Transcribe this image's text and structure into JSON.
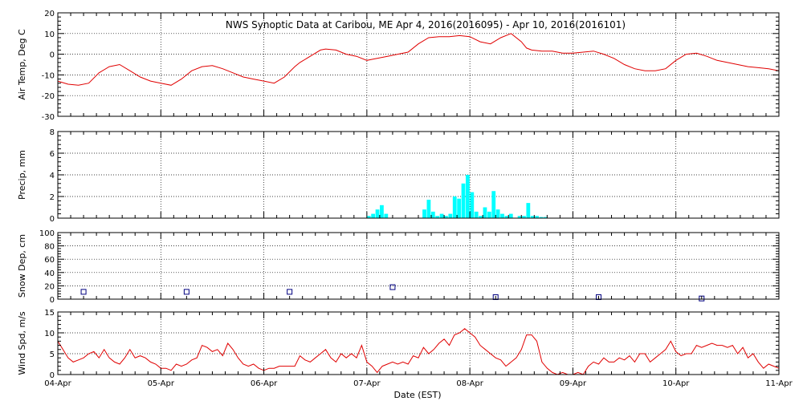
{
  "chart_data": {
    "title": "NWS Synoptic Data at Caribou, ME   Apr  4, 2016(2016095) - Apr 10, 2016(2016101)",
    "xlabel": "Date (EST)",
    "x_tick_labels": [
      "04-Apr",
      "05-Apr",
      "06-Apr",
      "07-Apr",
      "08-Apr",
      "09-Apr",
      "10-Apr",
      "11-Apr"
    ],
    "x_range_days": [
      0,
      7
    ],
    "line_color": "#e00000",
    "bar_color": "#00ffff",
    "marker_color": "#000080",
    "panels": [
      {
        "type": "line",
        "ylabel": "Air Temp, Deg C",
        "ylim": [
          -30,
          20
        ],
        "yticks": [
          -30,
          -20,
          -10,
          0,
          10,
          20
        ],
        "grid": true,
        "series": [
          {
            "x": [
              0,
              0.1,
              0.2,
              0.3,
              0.4,
              0.5,
              0.6,
              0.7,
              0.8,
              0.9,
              1.0,
              1.1,
              1.2,
              1.3,
              1.4,
              1.5,
              1.6,
              1.7,
              1.8,
              1.9,
              2.0,
              2.1,
              2.2,
              2.3,
              2.35,
              2.45,
              2.55,
              2.6,
              2.7,
              2.8,
              2.9,
              3.0,
              3.05,
              3.1,
              3.2,
              3.3,
              3.4,
              3.5,
              3.6,
              3.7,
              3.8,
              3.9,
              4.0,
              4.1,
              4.2,
              4.3,
              4.4,
              4.5,
              4.55,
              4.6,
              4.7,
              4.8,
              4.9,
              5.0,
              5.1,
              5.2,
              5.3,
              5.4,
              5.5,
              5.6,
              5.7,
              5.8,
              5.9,
              6.0,
              6.1,
              6.2,
              6.3,
              6.4,
              6.5,
              6.6,
              6.7,
              6.8,
              6.9,
              7.0
            ],
            "y": [
              -13,
              -14.5,
              -15,
              -14,
              -9,
              -6,
              -5,
              -8,
              -11,
              -13,
              -14,
              -15,
              -12,
              -8,
              -6,
              -5.5,
              -7,
              -9,
              -11,
              -12,
              -13,
              -14,
              -11,
              -6,
              -4,
              -1,
              2,
              2.5,
              2,
              0,
              -1,
              -3,
              -2.5,
              -2,
              -1,
              0,
              1,
              5,
              8,
              8.5,
              8.5,
              9,
              8.5,
              6,
              5,
              8,
              10,
              6,
              3,
              2,
              1.5,
              1.5,
              0.5,
              0.5,
              1,
              1.5,
              0,
              -2,
              -5,
              -7,
              -8,
              -8,
              -7,
              -3,
              0,
              0.5,
              -1,
              -3,
              -4,
              -5,
              -6,
              -6.5,
              -7,
              -8
            ]
          }
        ]
      },
      {
        "type": "bar",
        "ylabel": "Precip, mm",
        "ylim": [
          0,
          8
        ],
        "yticks": [
          0,
          2,
          4,
          6,
          8
        ],
        "grid": true,
        "bar_width_days": 0.042,
        "x": [
          3.0,
          3.042,
          3.084,
          3.126,
          3.168,
          3.21,
          3.54,
          3.582,
          3.624,
          3.666,
          3.708,
          3.75,
          3.792,
          3.834,
          3.876,
          3.918,
          3.96,
          4.002,
          4.044,
          4.086,
          4.128,
          4.17,
          4.212,
          4.254,
          4.296,
          4.338,
          4.38,
          4.422,
          4.464,
          4.506,
          4.548,
          4.59,
          4.632,
          4.674,
          4.716,
          4.758
        ],
        "values": [
          0.2,
          0.4,
          0.8,
          1.2,
          0.4,
          0.0,
          0.8,
          1.7,
          0.6,
          0.2,
          0.4,
          0.2,
          0.4,
          2.0,
          1.8,
          3.2,
          4.0,
          2.4,
          0.6,
          0.2,
          1.0,
          0.6,
          2.5,
          0.8,
          0.4,
          0.2,
          0.4,
          0.0,
          0.2,
          0.2,
          1.4,
          0.2,
          0.2,
          0.1,
          0.1,
          0.0
        ]
      },
      {
        "type": "scatter",
        "ylabel": "Snow Dep, cm",
        "ylim": [
          0,
          100
        ],
        "yticks": [
          0,
          20,
          40,
          60,
          80,
          100
        ],
        "grid": true,
        "series": [
          {
            "x": [
              0.25,
              1.25,
              2.25,
              3.25,
              4.25,
              5.25,
              6.25
            ],
            "y": [
              11,
              11,
              11,
              18,
              3,
              3,
              1
            ]
          }
        ]
      },
      {
        "type": "line",
        "ylabel": "Wind Spd, m/s",
        "ylim": [
          0,
          15
        ],
        "yticks": [
          0,
          5,
          10,
          15
        ],
        "grid": true,
        "series": [
          {
            "x": [
              0,
              0.05,
              0.1,
              0.15,
              0.2,
              0.25,
              0.3,
              0.35,
              0.4,
              0.45,
              0.5,
              0.55,
              0.6,
              0.65,
              0.7,
              0.75,
              0.8,
              0.85,
              0.9,
              0.95,
              1.0,
              1.05,
              1.1,
              1.15,
              1.2,
              1.25,
              1.3,
              1.35,
              1.4,
              1.45,
              1.5,
              1.55,
              1.6,
              1.65,
              1.7,
              1.75,
              1.8,
              1.85,
              1.9,
              1.95,
              2.0,
              2.05,
              2.1,
              2.15,
              2.2,
              2.25,
              2.3,
              2.35,
              2.4,
              2.45,
              2.5,
              2.55,
              2.6,
              2.65,
              2.7,
              2.75,
              2.8,
              2.85,
              2.9,
              2.95,
              3.0,
              3.05,
              3.1,
              3.15,
              3.2,
              3.25,
              3.3,
              3.35,
              3.4,
              3.45,
              3.5,
              3.55,
              3.6,
              3.65,
              3.7,
              3.75,
              3.8,
              3.85,
              3.9,
              3.95,
              4.0,
              4.05,
              4.1,
              4.15,
              4.2,
              4.25,
              4.3,
              4.35,
              4.4,
              4.45,
              4.5,
              4.55,
              4.6,
              4.65,
              4.7,
              4.75,
              4.8,
              4.85,
              4.9,
              4.95,
              5.0,
              5.05,
              5.1,
              5.15,
              5.2,
              5.25,
              5.3,
              5.35,
              5.4,
              5.45,
              5.5,
              5.55,
              5.6,
              5.65,
              5.7,
              5.75,
              5.8,
              5.85,
              5.9,
              5.95,
              6.0,
              6.05,
              6.1,
              6.15,
              6.2,
              6.25,
              6.3,
              6.35,
              6.4,
              6.45,
              6.5,
              6.55,
              6.6,
              6.65,
              6.7,
              6.75,
              6.8,
              6.85,
              6.9,
              6.95,
              7.0
            ],
            "y": [
              8,
              6,
              4,
              3,
              3.5,
              4,
              5,
              5.5,
              4,
              6,
              4,
              3,
              2.5,
              4,
              6,
              4,
              4.5,
              4,
              3,
              2.5,
              1.5,
              1.5,
              1.0,
              2.5,
              2,
              2.5,
              3.5,
              4,
              7,
              6.5,
              5.5,
              6,
              4.5,
              7.5,
              6,
              4,
              2.5,
              2,
              2.5,
              1.5,
              1.0,
              1.5,
              1.5,
              2,
              2,
              2,
              2,
              4.5,
              3.5,
              3,
              4,
              5,
              6,
              4,
              3,
              5,
              4,
              5,
              4,
              7,
              3,
              2,
              0.5,
              2,
              2.5,
              3,
              2.5,
              3,
              2.5,
              4.5,
              4,
              6.5,
              5,
              6,
              7.5,
              8.5,
              7,
              9.5,
              10,
              11,
              10,
              9,
              7,
              6,
              5,
              4,
              3.5,
              2,
              3,
              4,
              6,
              9.5,
              9.5,
              8,
              3,
              1.5,
              0.5,
              0.0,
              0.5,
              0.0,
              0.0,
              0.5,
              0.0,
              2,
              3,
              2.5,
              4,
              3,
              3,
              4,
              3.5,
              4.5,
              3,
              5,
              5,
              3,
              4,
              5,
              6,
              8,
              5.5,
              4.5,
              5,
              5,
              7,
              6.5,
              7,
              7.5,
              7,
              7,
              6.5,
              7,
              5,
              6.5,
              4,
              5,
              3,
              1.5,
              2.5,
              2,
              1.5
            ]
          }
        ]
      }
    ]
  }
}
